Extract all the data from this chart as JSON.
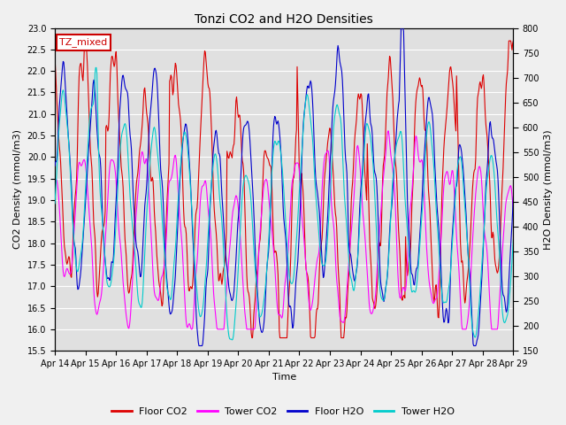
{
  "title": "Tonzi CO2 and H2O Densities",
  "xlabel": "Time",
  "ylabel_left": "CO2 Density (mmol/m3)",
  "ylabel_right": "H2O Density (mmol/m3)",
  "ylim_left": [
    15.5,
    23.0
  ],
  "ylim_right": [
    150,
    800
  ],
  "yticks_left": [
    15.5,
    16.0,
    16.5,
    17.0,
    17.5,
    18.0,
    18.5,
    19.0,
    19.5,
    20.0,
    20.5,
    21.0,
    21.5,
    22.0,
    22.5,
    23.0
  ],
  "yticks_right": [
    150,
    200,
    250,
    300,
    350,
    400,
    450,
    500,
    550,
    600,
    650,
    700,
    750,
    800
  ],
  "xtick_labels": [
    "Apr 14",
    "Apr 15",
    "Apr 16",
    "Apr 17",
    "Apr 18",
    "Apr 19",
    "Apr 20",
    "Apr 21",
    "Apr 22",
    "Apr 23",
    "Apr 24",
    "Apr 25",
    "Apr 26",
    "Apr 27",
    "Apr 28",
    "Apr 29"
  ],
  "legend_labels": [
    "Floor CO2",
    "Tower CO2",
    "Floor H2O",
    "Tower H2O"
  ],
  "legend_colors": [
    "#dd0000",
    "#ff00ff",
    "#0000cc",
    "#00cccc"
  ],
  "annotation_text": "TZ_mixed",
  "annotation_color": "#cc0000",
  "background_color": "#e0e0e0",
  "grid_color": "#ffffff",
  "fig_width": 6.4,
  "fig_height": 4.8,
  "dpi": 100
}
